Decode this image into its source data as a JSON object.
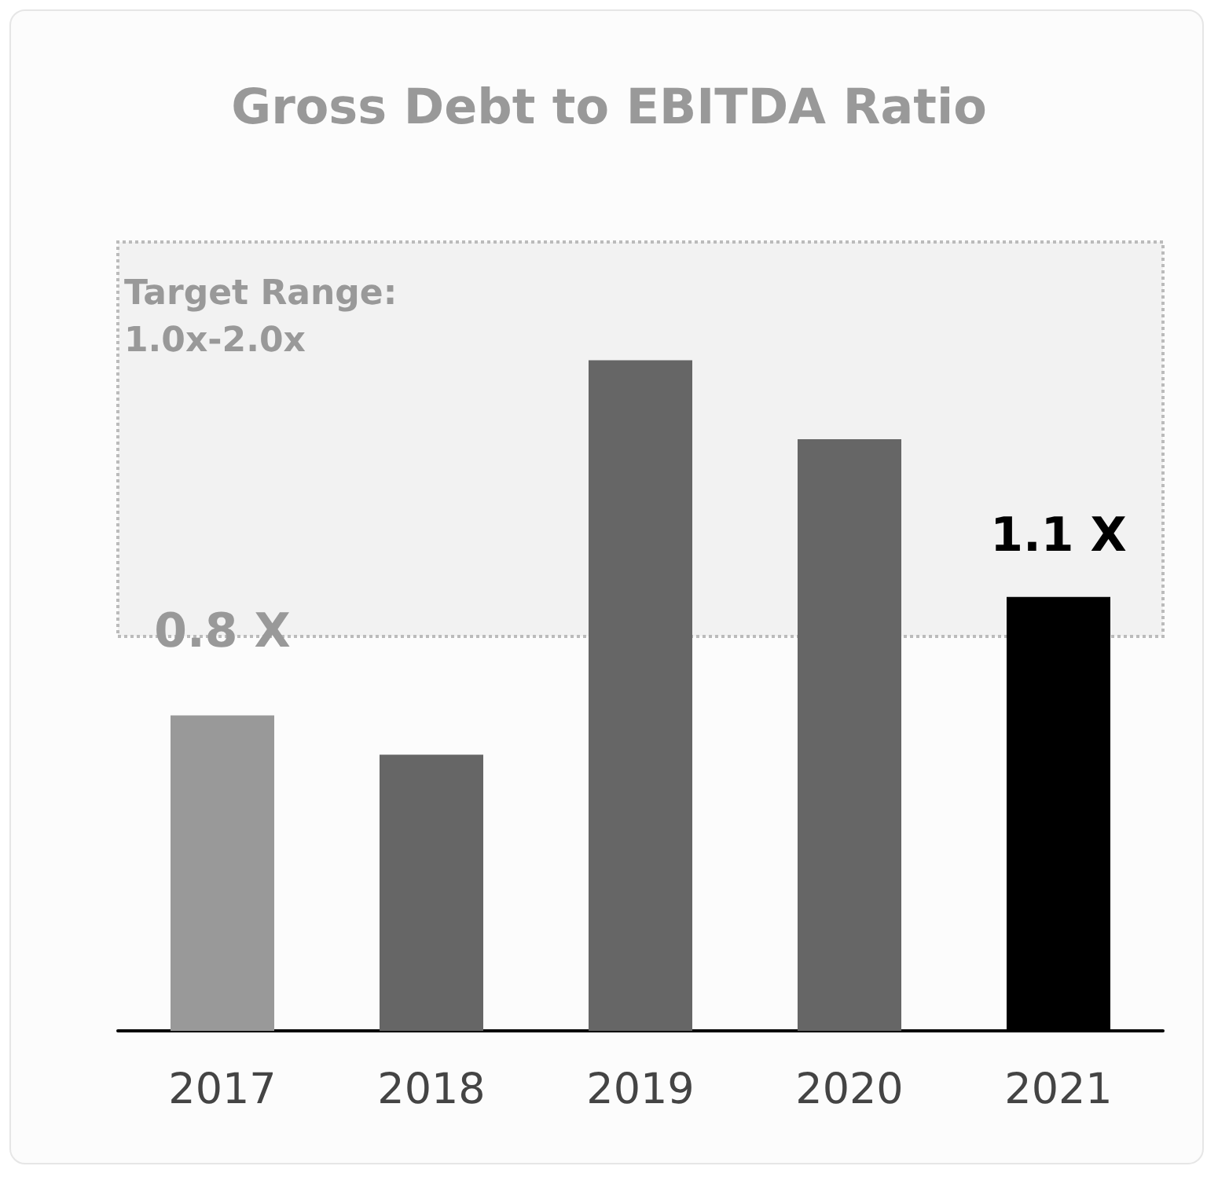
{
  "chart_data": {
    "type": "bar",
    "title": "Gross Debt to EBITDA Ratio",
    "categories": [
      "2017",
      "2018",
      "2019",
      "2020",
      "2021"
    ],
    "values": [
      0.8,
      0.7,
      1.7,
      1.5,
      1.1
    ],
    "colors": [
      "#999999",
      "#666666",
      "#666666",
      "#666666",
      "#000000"
    ],
    "value_labels": [
      "0.8 X",
      null,
      null,
      null,
      "1.1 X"
    ],
    "bands": [
      {
        "axis": "y",
        "from": 1.0,
        "to": 2.0,
        "label": "Target Range: 1.0x-2.0x",
        "color": "#f2f2f2"
      }
    ],
    "grid": false
  }
}
